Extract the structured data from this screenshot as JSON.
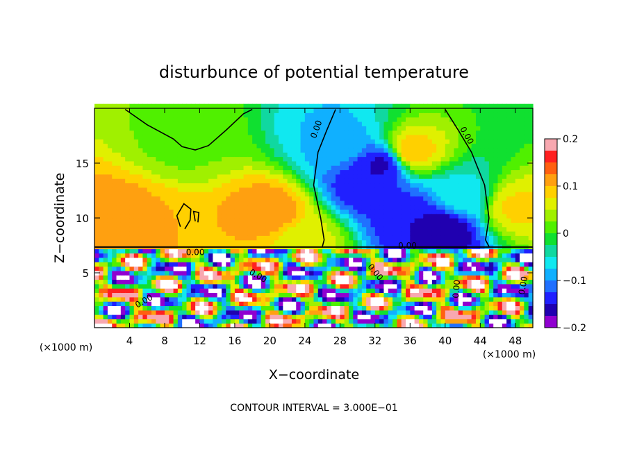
{
  "chart_data": {
    "type": "heatmap",
    "title": "disturbunce of potential temperature",
    "xlabel": "X−coordinate",
    "ylabel": "Z−coordinate",
    "x_unit_left": "(×1000 m)",
    "x_unit_right": "(×1000 m)",
    "footer": "CONTOUR INTERVAL = 3.000E−01",
    "xlim": [
      0,
      50
    ],
    "ylim": [
      0,
      20
    ],
    "x_ticks": [
      4,
      8,
      12,
      16,
      20,
      24,
      28,
      32,
      36,
      40,
      44,
      48
    ],
    "y_ticks": [
      5,
      10,
      15
    ],
    "colorbar": {
      "range": [
        -0.2,
        0.2
      ],
      "ticks": [
        "0.2",
        "0.1",
        "0",
        "−0.1",
        "−0.2"
      ],
      "colors": [
        "#f8a8b0",
        "#ff2020",
        "#ff6010",
        "#ffa010",
        "#ffd000",
        "#e0f000",
        "#a0f000",
        "#50f000",
        "#10e030",
        "#10d8a0",
        "#10e8f0",
        "#10b0ff",
        "#2070ff",
        "#2020ff",
        "#2000b0",
        "#9000d0"
      ]
    },
    "contour_labels": [
      "0.00",
      "0.00",
      "0.00",
      "0.00",
      "0.00",
      "0.00",
      "0.00",
      "0.00",
      "0.00"
    ],
    "upper_field_sources": [
      {
        "x": 2,
        "z": 10,
        "value": 0.12
      },
      {
        "x": 6,
        "z": 9,
        "value": 0.1
      },
      {
        "x": 20,
        "z": 10.5,
        "value": 0.12
      },
      {
        "x": 24,
        "z": 8,
        "value": 0.06
      },
      {
        "x": 36,
        "z": 16,
        "value": 0.1
      },
      {
        "x": 48,
        "z": 11,
        "value": 0.08
      },
      {
        "x": 10,
        "z": 17,
        "value": 0.02
      },
      {
        "x": 31,
        "z": 13,
        "value": -0.15
      },
      {
        "x": 33,
        "z": 15,
        "value": -0.16
      },
      {
        "x": 36,
        "z": 10,
        "value": -0.15
      },
      {
        "x": 40,
        "z": 9,
        "value": -0.17
      },
      {
        "x": 28,
        "z": 17,
        "value": -0.08
      },
      {
        "x": 42,
        "z": 12,
        "value": -0.06
      }
    ]
  }
}
